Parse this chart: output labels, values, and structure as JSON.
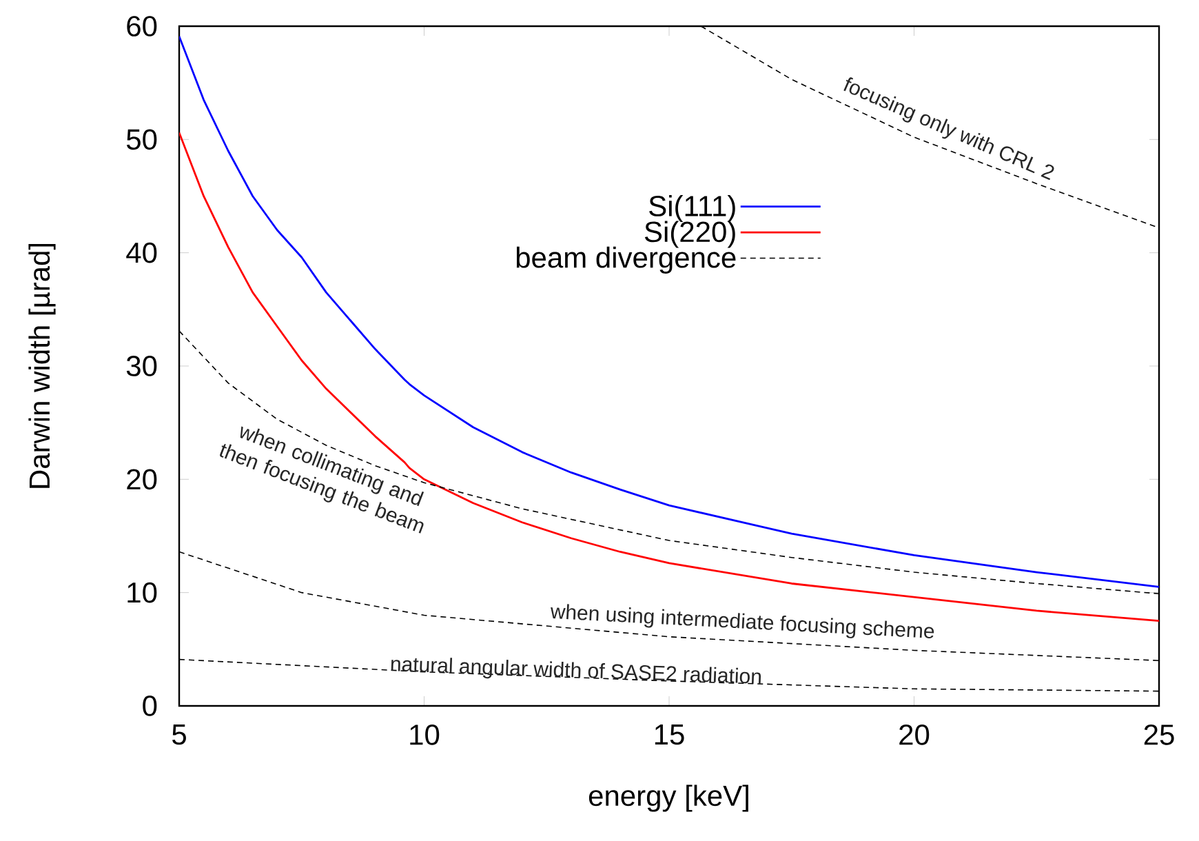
{
  "chart_data": {
    "type": "line",
    "xlabel": "energy [keV]",
    "ylabel": "Darwin width [µrad]",
    "xlim": [
      5,
      25
    ],
    "ylim": [
      0,
      60
    ],
    "xticks": [
      5,
      10,
      15,
      20,
      25
    ],
    "yticks": [
      0,
      10,
      20,
      30,
      40,
      50,
      60
    ],
    "legend": "right",
    "marker": "none",
    "series": [
      {
        "name": "Si(111)",
        "color": "#0000ff",
        "line_style": "solid",
        "x": [
          5,
          5.5,
          6,
          6.5,
          7,
          7.5,
          8,
          9,
          9.6,
          9.7,
          10,
          11,
          12,
          13,
          14,
          15,
          17.5,
          20,
          22.5,
          25
        ],
        "values": [
          59.1,
          53.5,
          49,
          45,
          42,
          39.6,
          36.5,
          31.5,
          28.8,
          28.4,
          27.4,
          24.6,
          22.4,
          20.6,
          19.1,
          17.7,
          15.2,
          13.3,
          11.8,
          10.5
        ]
      },
      {
        "name": "Si(220)",
        "color": "#ff0000",
        "line_style": "solid",
        "x": [
          5,
          5.5,
          6,
          6.5,
          7,
          7.5,
          8,
          9,
          9.6,
          9.7,
          10,
          11,
          12,
          13,
          14,
          15,
          17.5,
          20,
          22.5,
          25
        ],
        "values": [
          50.6,
          45,
          40.5,
          36.5,
          33.5,
          30.5,
          28,
          23.8,
          21.5,
          21.0,
          20.0,
          17.9,
          16.2,
          14.8,
          13.6,
          12.6,
          10.8,
          9.6,
          8.4,
          7.5
        ]
      },
      {
        "name": "beam divergence",
        "color": "#000000",
        "line_style": "dashed",
        "x": [
          5,
          6,
          7,
          8,
          9,
          10,
          12,
          15,
          17.5,
          20,
          22.5,
          25
        ],
        "values": [
          33.1,
          28.5,
          25.3,
          23,
          21.2,
          19.7,
          17.4,
          14.6,
          13.1,
          11.8,
          10.8,
          9.9
        ]
      },
      {
        "color": "#000000",
        "line_style": "dashed",
        "x": [
          5,
          7.5,
          10,
          15,
          20,
          25
        ],
        "values": [
          13.6,
          10.0,
          8.0,
          6.1,
          4.9,
          4.0
        ]
      },
      {
        "color": "#000000",
        "line_style": "dashed",
        "x": [
          5,
          10,
          15,
          20,
          25
        ],
        "values": [
          4.1,
          3.0,
          2.2,
          1.5,
          1.3
        ]
      },
      {
        "color": "#000000",
        "line_style": "dashed",
        "x": [
          15.65,
          17.5,
          20,
          22.5,
          25
        ],
        "values": [
          60,
          55.3,
          50.2,
          46.1,
          42.2
        ]
      }
    ],
    "annotations": [
      "focusing only with CRL 2",
      "when collimating and then focusing the beam",
      "when using intermediate focusing scheme",
      "natural angular width of SASE2 radiation"
    ]
  }
}
